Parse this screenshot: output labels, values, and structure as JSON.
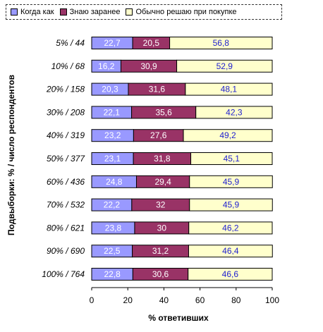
{
  "chart_data": {
    "type": "bar",
    "orientation": "horizontal",
    "stacked": true,
    "title": "",
    "xlabel": "% ответивших",
    "ylabel": "Подвыборки:  %  / число респондентов",
    "xlim": [
      0,
      100
    ],
    "xticks": [
      0,
      20,
      40,
      60,
      80,
      100
    ],
    "legend_position": "top",
    "grid": false,
    "categories": [
      "5% / 44",
      "10% / 68",
      "20% / 158",
      "30% / 208",
      "40% / 319",
      "50% / 377",
      "60% / 436",
      "70% / 532",
      "80% / 621",
      "90% / 690",
      "100% / 764"
    ],
    "series": [
      {
        "name": "Когда как",
        "color": "#9999ff",
        "label_color": "#ffffff",
        "values": [
          22.7,
          16.2,
          20.3,
          22.1,
          23.2,
          23.1,
          24.8,
          22.2,
          23.8,
          22.5,
          22.8
        ],
        "labels": [
          "22,7",
          "16,2",
          "20,3",
          "22,1",
          "23,2",
          "23,1",
          "24,8",
          "22,2",
          "23,8",
          "22,5",
          "22,8"
        ]
      },
      {
        "name": "Знаю заранее",
        "color": "#993366",
        "label_color": "#ffffff",
        "values": [
          20.5,
          30.9,
          31.6,
          35.6,
          27.6,
          31.8,
          29.4,
          32,
          30,
          31.2,
          30.6
        ],
        "labels": [
          "20,5",
          "30,9",
          "31,6",
          "35,6",
          "27,6",
          "31,8",
          "29,4",
          "32",
          "30",
          "31,2",
          "30,6"
        ]
      },
      {
        "name": "Обычно решаю при покупке",
        "color": "#ffffcc",
        "label_color": "#1f1fd0",
        "values": [
          56.8,
          52.9,
          48.1,
          42.3,
          49.2,
          45.1,
          45.9,
          45.9,
          46.2,
          46.4,
          46.6
        ],
        "labels": [
          "56,8",
          "52,9",
          "48,1",
          "42,3",
          "49,2",
          "45,1",
          "45,9",
          "45,9",
          "46,2",
          "46,4",
          "46,6"
        ]
      }
    ]
  }
}
